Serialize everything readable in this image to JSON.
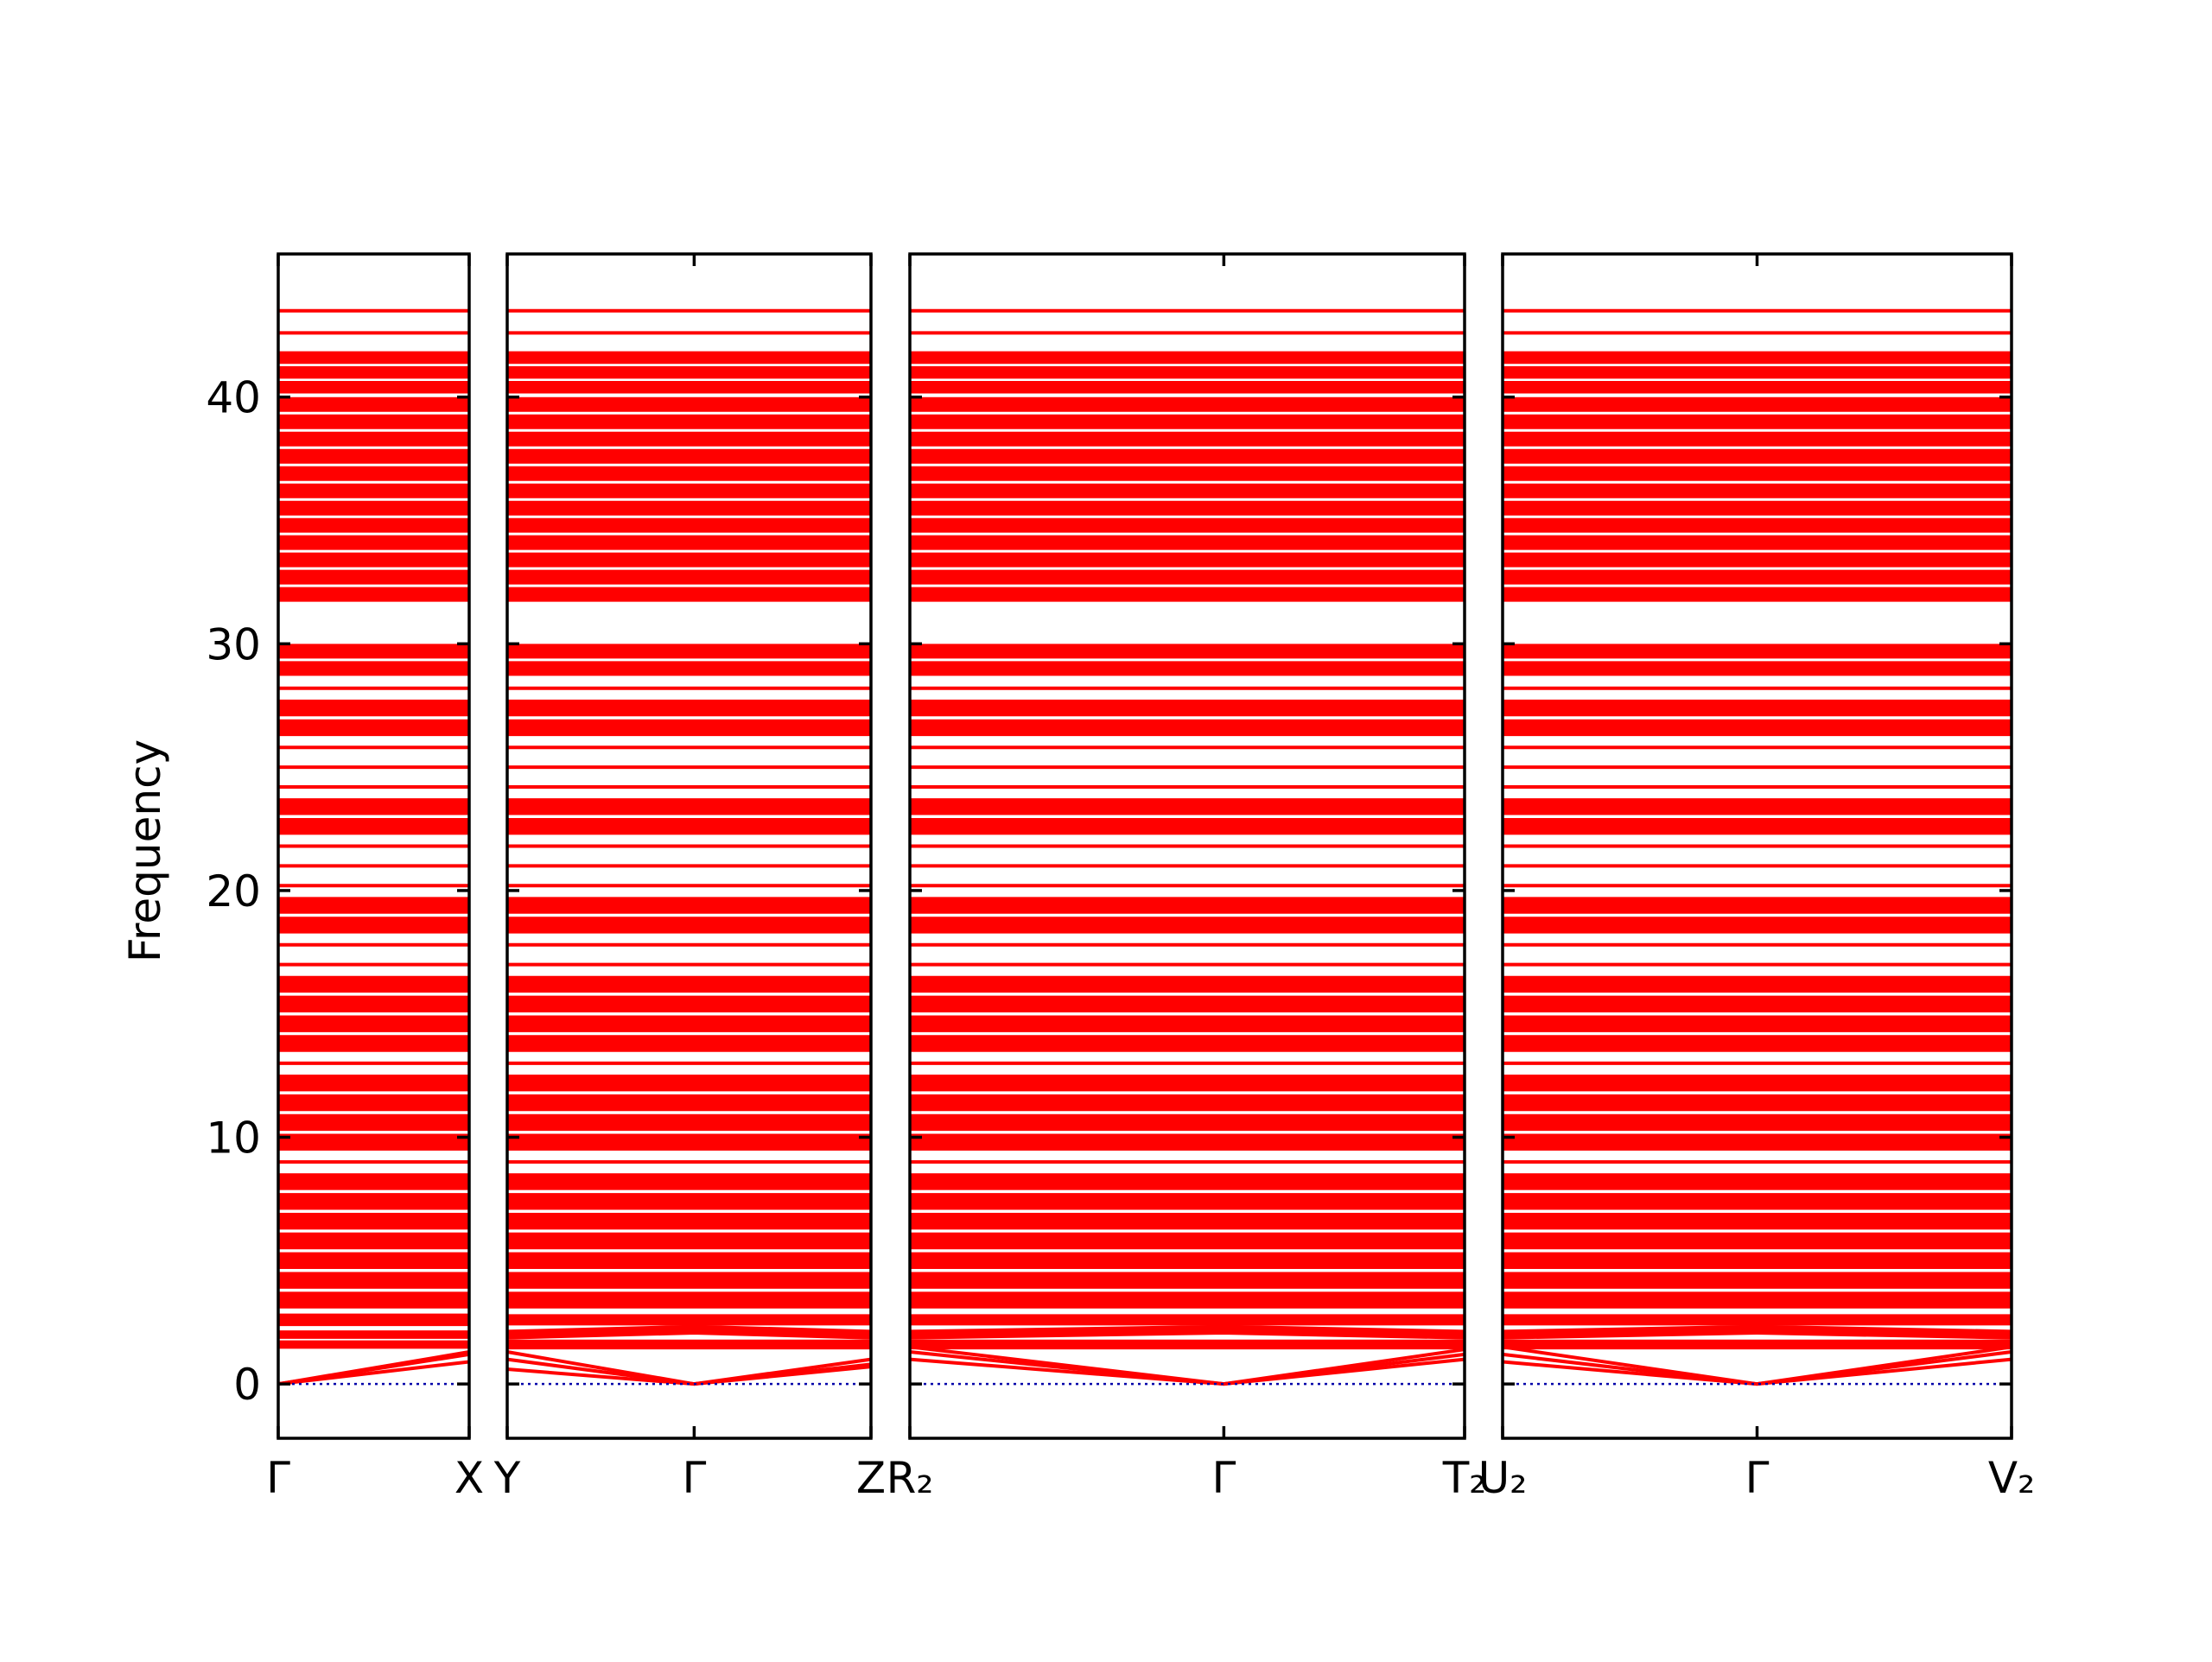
{
  "chart_data": {
    "type": "line",
    "ylabel": "Frequency",
    "color": "#ff0000",
    "zero_line_color": "#0000aa",
    "ylim": [
      -2.2,
      45.8
    ],
    "yticks": [
      0,
      10,
      20,
      30,
      40
    ],
    "panels": [
      {
        "xlim": [
          0,
          1
        ],
        "x": [
          0,
          1
        ],
        "xticks": [
          {
            "value": 0,
            "label": "Γ"
          },
          {
            "value": 1,
            "label": "X"
          }
        ],
        "bands": [
          [
            43.5,
            43.5
          ],
          [
            42.6,
            42.6
          ],
          [
            41.6,
            41.6
          ],
          [
            41.0,
            41.0
          ],
          [
            40.4,
            40.4
          ],
          [
            39.7,
            39.7
          ],
          [
            39.0,
            39.0
          ],
          [
            38.3,
            38.3
          ],
          [
            37.6,
            37.6
          ],
          [
            36.9,
            36.9
          ],
          [
            36.2,
            36.2
          ],
          [
            35.5,
            35.5
          ],
          [
            34.8,
            34.8
          ],
          [
            34.1,
            34.1
          ],
          [
            33.4,
            33.4
          ],
          [
            32.7,
            32.7
          ],
          [
            32.0,
            32.0
          ],
          [
            29.7,
            29.7
          ],
          [
            29.0,
            29.0
          ],
          [
            28.2,
            28.2
          ],
          [
            27.4,
            27.4
          ],
          [
            26.6,
            26.6
          ],
          [
            25.8,
            25.8
          ],
          [
            25.0,
            25.0
          ],
          [
            24.2,
            24.2
          ],
          [
            23.4,
            23.4
          ],
          [
            22.6,
            22.6
          ],
          [
            21.8,
            21.8
          ],
          [
            21.0,
            21.0
          ],
          [
            20.2,
            20.2
          ],
          [
            19.4,
            19.4
          ],
          [
            18.6,
            18.6
          ],
          [
            17.8,
            17.8
          ],
          [
            17.0,
            17.0
          ],
          [
            16.2,
            16.2
          ],
          [
            15.4,
            15.4
          ],
          [
            14.6,
            14.6
          ],
          [
            13.8,
            13.8
          ],
          [
            13.0,
            13.0
          ],
          [
            12.2,
            12.2
          ],
          [
            11.4,
            11.4
          ],
          [
            10.6,
            10.6
          ],
          [
            9.8,
            9.8
          ],
          [
            9.0,
            9.0
          ],
          [
            8.2,
            8.2
          ],
          [
            7.4,
            7.4
          ],
          [
            6.6,
            6.6
          ],
          [
            5.8,
            5.8
          ],
          [
            5.0,
            5.0
          ],
          [
            4.2,
            4.2
          ],
          [
            3.4,
            3.4
          ],
          [
            2.6,
            2.6
          ],
          [
            2.0,
            2.0
          ],
          [
            1.6,
            1.6
          ],
          [
            0,
            1.2
          ],
          [
            0,
            1.3
          ],
          [
            0,
            0.9
          ]
        ]
      },
      {
        "xlim": [
          0,
          1
        ],
        "x": [
          0,
          0.514,
          1
        ],
        "xticks": [
          {
            "value": 0,
            "label": "Y"
          },
          {
            "value": 0.514,
            "label": "Γ"
          },
          {
            "value": 1,
            "label": "Z"
          }
        ],
        "bands": [
          [
            43.5,
            43.5,
            43.5
          ],
          [
            42.6,
            42.6,
            42.6
          ],
          [
            41.6,
            41.6,
            41.6
          ],
          [
            41.0,
            41.0,
            41.0
          ],
          [
            40.4,
            40.4,
            40.4
          ],
          [
            39.7,
            39.7,
            39.7
          ],
          [
            39.0,
            39.0,
            39.0
          ],
          [
            38.3,
            38.3,
            38.3
          ],
          [
            37.6,
            37.6,
            37.6
          ],
          [
            36.9,
            36.9,
            36.9
          ],
          [
            36.2,
            36.2,
            36.2
          ],
          [
            35.5,
            35.5,
            35.5
          ],
          [
            34.8,
            34.8,
            34.8
          ],
          [
            34.1,
            34.1,
            34.1
          ],
          [
            33.4,
            33.4,
            33.4
          ],
          [
            32.7,
            32.7,
            32.7
          ],
          [
            32.0,
            32.0,
            32.0
          ],
          [
            29.7,
            29.7,
            29.7
          ],
          [
            29.0,
            29.0,
            29.0
          ],
          [
            28.2,
            28.2,
            28.2
          ],
          [
            27.4,
            27.4,
            27.4
          ],
          [
            26.6,
            26.6,
            26.6
          ],
          [
            25.8,
            25.8,
            25.8
          ],
          [
            25.0,
            25.0,
            25.0
          ],
          [
            24.2,
            24.2,
            24.2
          ],
          [
            23.4,
            23.4,
            23.4
          ],
          [
            22.6,
            22.6,
            22.6
          ],
          [
            21.8,
            21.8,
            21.8
          ],
          [
            21.0,
            21.0,
            21.0
          ],
          [
            20.2,
            20.2,
            20.2
          ],
          [
            19.4,
            19.4,
            19.4
          ],
          [
            18.6,
            18.6,
            18.6
          ],
          [
            17.8,
            17.8,
            17.8
          ],
          [
            17.0,
            17.0,
            17.0
          ],
          [
            16.2,
            16.2,
            16.2
          ],
          [
            15.4,
            15.4,
            15.4
          ],
          [
            14.6,
            14.6,
            14.6
          ],
          [
            13.8,
            13.8,
            13.8
          ],
          [
            13.0,
            13.0,
            13.0
          ],
          [
            12.2,
            12.2,
            12.2
          ],
          [
            11.4,
            11.4,
            11.4
          ],
          [
            10.6,
            10.6,
            10.6
          ],
          [
            9.8,
            9.8,
            9.8
          ],
          [
            9.0,
            9.0,
            9.0
          ],
          [
            8.2,
            8.2,
            8.2
          ],
          [
            7.4,
            7.4,
            7.4
          ],
          [
            6.6,
            6.6,
            6.6
          ],
          [
            5.8,
            5.8,
            5.8
          ],
          [
            5.0,
            5.0,
            5.0
          ],
          [
            4.2,
            4.2,
            4.2
          ],
          [
            3.4,
            3.4,
            3.4
          ],
          [
            2.6,
            2.6,
            2.6
          ],
          [
            2.0,
            2.2,
            2.0
          ],
          [
            1.6,
            1.6,
            1.6
          ],
          [
            1.0,
            0,
            0.8
          ],
          [
            0.6,
            0,
            0.7
          ],
          [
            1.3,
            0,
            1.0
          ]
        ]
      },
      {
        "xlim": [
          0,
          1
        ],
        "x": [
          0,
          0.566,
          1
        ],
        "xticks": [
          {
            "value": 0,
            "label": "R₂"
          },
          {
            "value": 0.566,
            "label": "Γ"
          },
          {
            "value": 1,
            "label": "T₂"
          }
        ],
        "bands": [
          [
            43.5,
            43.5,
            43.5
          ],
          [
            42.6,
            42.6,
            42.6
          ],
          [
            41.6,
            41.6,
            41.6
          ],
          [
            41.0,
            41.0,
            41.0
          ],
          [
            40.4,
            40.4,
            40.4
          ],
          [
            39.7,
            39.7,
            39.7
          ],
          [
            39.0,
            39.0,
            39.0
          ],
          [
            38.3,
            38.3,
            38.3
          ],
          [
            37.6,
            37.6,
            37.6
          ],
          [
            36.9,
            36.9,
            36.9
          ],
          [
            36.2,
            36.2,
            36.2
          ],
          [
            35.5,
            35.5,
            35.5
          ],
          [
            34.8,
            34.8,
            34.8
          ],
          [
            34.1,
            34.1,
            34.1
          ],
          [
            33.4,
            33.4,
            33.4
          ],
          [
            32.7,
            32.7,
            32.7
          ],
          [
            32.0,
            32.0,
            32.0
          ],
          [
            29.7,
            29.7,
            29.7
          ],
          [
            29.0,
            29.0,
            29.0
          ],
          [
            28.2,
            28.2,
            28.2
          ],
          [
            27.4,
            27.4,
            27.4
          ],
          [
            26.6,
            26.6,
            26.6
          ],
          [
            25.8,
            25.8,
            25.8
          ],
          [
            25.0,
            25.0,
            25.0
          ],
          [
            24.2,
            24.2,
            24.2
          ],
          [
            23.4,
            23.4,
            23.4
          ],
          [
            22.6,
            22.6,
            22.6
          ],
          [
            21.8,
            21.8,
            21.8
          ],
          [
            21.0,
            21.0,
            21.0
          ],
          [
            20.2,
            20.2,
            20.2
          ],
          [
            19.4,
            19.4,
            19.4
          ],
          [
            18.6,
            18.6,
            18.6
          ],
          [
            17.8,
            17.8,
            17.8
          ],
          [
            17.0,
            17.0,
            17.0
          ],
          [
            16.2,
            16.2,
            16.2
          ],
          [
            15.4,
            15.4,
            15.4
          ],
          [
            14.6,
            14.6,
            14.6
          ],
          [
            13.8,
            13.8,
            13.8
          ],
          [
            13.0,
            13.0,
            13.0
          ],
          [
            12.2,
            12.2,
            12.2
          ],
          [
            11.4,
            11.4,
            11.4
          ],
          [
            10.6,
            10.6,
            10.6
          ],
          [
            9.8,
            9.8,
            9.8
          ],
          [
            9.0,
            9.0,
            9.0
          ],
          [
            8.2,
            8.2,
            8.2
          ],
          [
            7.4,
            7.4,
            7.4
          ],
          [
            6.6,
            6.6,
            6.6
          ],
          [
            5.8,
            5.8,
            5.8
          ],
          [
            5.0,
            5.0,
            5.0
          ],
          [
            4.2,
            4.2,
            4.2
          ],
          [
            3.4,
            3.4,
            3.4
          ],
          [
            2.6,
            2.6,
            2.6
          ],
          [
            2.0,
            2.2,
            2.0
          ],
          [
            1.6,
            1.6,
            1.6
          ],
          [
            1.3,
            0,
            1.2
          ],
          [
            1.0,
            0,
            1.0
          ],
          [
            1.5,
            0,
            1.4
          ]
        ]
      },
      {
        "xlim": [
          0,
          1
        ],
        "x": [
          0,
          0.5,
          1
        ],
        "xticks": [
          {
            "value": 0,
            "label": "U₂"
          },
          {
            "value": 0.5,
            "label": "Γ"
          },
          {
            "value": 1,
            "label": "V₂"
          }
        ],
        "bands": [
          [
            43.5,
            43.5,
            43.5
          ],
          [
            42.6,
            42.6,
            42.6
          ],
          [
            41.6,
            41.6,
            41.6
          ],
          [
            41.0,
            41.0,
            41.0
          ],
          [
            40.4,
            40.4,
            40.4
          ],
          [
            39.7,
            39.7,
            39.7
          ],
          [
            39.0,
            39.0,
            39.0
          ],
          [
            38.3,
            38.3,
            38.3
          ],
          [
            37.6,
            37.6,
            37.6
          ],
          [
            36.9,
            36.9,
            36.9
          ],
          [
            36.2,
            36.2,
            36.2
          ],
          [
            35.5,
            35.5,
            35.5
          ],
          [
            34.8,
            34.8,
            34.8
          ],
          [
            34.1,
            34.1,
            34.1
          ],
          [
            33.4,
            33.4,
            33.4
          ],
          [
            32.7,
            32.7,
            32.7
          ],
          [
            32.0,
            32.0,
            32.0
          ],
          [
            29.7,
            29.7,
            29.7
          ],
          [
            29.0,
            29.0,
            29.0
          ],
          [
            28.2,
            28.2,
            28.2
          ],
          [
            27.4,
            27.4,
            27.4
          ],
          [
            26.6,
            26.6,
            26.6
          ],
          [
            25.8,
            25.8,
            25.8
          ],
          [
            25.0,
            25.0,
            25.0
          ],
          [
            24.2,
            24.2,
            24.2
          ],
          [
            23.4,
            23.4,
            23.4
          ],
          [
            22.6,
            22.6,
            22.6
          ],
          [
            21.8,
            21.8,
            21.8
          ],
          [
            21.0,
            21.0,
            21.0
          ],
          [
            20.2,
            20.2,
            20.2
          ],
          [
            19.4,
            19.4,
            19.4
          ],
          [
            18.6,
            18.6,
            18.6
          ],
          [
            17.8,
            17.8,
            17.8
          ],
          [
            17.0,
            17.0,
            17.0
          ],
          [
            16.2,
            16.2,
            16.2
          ],
          [
            15.4,
            15.4,
            15.4
          ],
          [
            14.6,
            14.6,
            14.6
          ],
          [
            13.8,
            13.8,
            13.8
          ],
          [
            13.0,
            13.0,
            13.0
          ],
          [
            12.2,
            12.2,
            12.2
          ],
          [
            11.4,
            11.4,
            11.4
          ],
          [
            10.6,
            10.6,
            10.6
          ],
          [
            9.8,
            9.8,
            9.8
          ],
          [
            9.0,
            9.0,
            9.0
          ],
          [
            8.2,
            8.2,
            8.2
          ],
          [
            7.4,
            7.4,
            7.4
          ],
          [
            6.6,
            6.6,
            6.6
          ],
          [
            5.8,
            5.8,
            5.8
          ],
          [
            5.0,
            5.0,
            5.0
          ],
          [
            4.2,
            4.2,
            4.2
          ],
          [
            3.4,
            3.4,
            3.4
          ],
          [
            2.6,
            2.6,
            2.6
          ],
          [
            2.0,
            2.2,
            2.0
          ],
          [
            1.6,
            1.6,
            1.6
          ],
          [
            1.2,
            0,
            1.3
          ],
          [
            0.9,
            0,
            1.0
          ],
          [
            1.5,
            0,
            1.5
          ]
        ]
      }
    ]
  }
}
